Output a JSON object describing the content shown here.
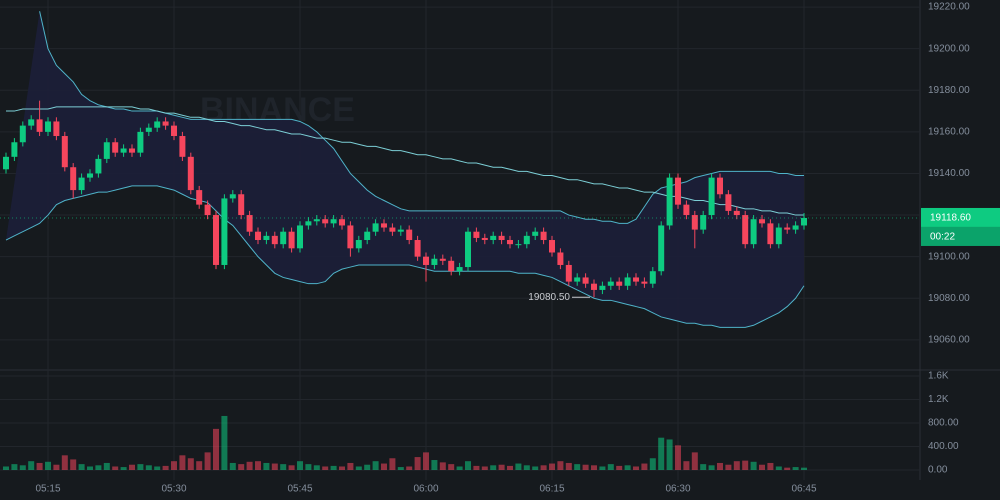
{
  "chart_data": [
    {
      "type": "candlestick",
      "watermark": "BINANCE",
      "categories": [
        null,
        null,
        null,
        null,
        null,
        "05:15",
        null,
        null,
        null,
        null,
        null,
        null,
        null,
        null,
        null,
        null,
        null,
        null,
        null,
        null,
        "05:30",
        null,
        null,
        null,
        null,
        null,
        null,
        null,
        null,
        null,
        null,
        null,
        null,
        null,
        null,
        "05:45",
        null,
        null,
        null,
        null,
        null,
        null,
        null,
        null,
        null,
        null,
        null,
        null,
        null,
        null,
        "06:00",
        null,
        null,
        null,
        null,
        null,
        null,
        null,
        null,
        null,
        null,
        null,
        null,
        null,
        null,
        "06:15",
        null,
        null,
        null,
        null,
        null,
        null,
        null,
        null,
        null,
        null,
        null,
        null,
        null,
        null,
        "06:30",
        null,
        null,
        null,
        null,
        null,
        null,
        null,
        null,
        null,
        null,
        null,
        null,
        null,
        null,
        "06:45"
      ],
      "open": [
        19142,
        19148,
        19155,
        19163,
        19166,
        19160,
        19165,
        19158,
        19143,
        19132,
        19138,
        19140,
        19147,
        19155,
        19150,
        19152,
        19150,
        19160,
        19162,
        19165,
        19163,
        19158,
        19148,
        19132,
        19125,
        19120,
        19096,
        19128,
        19130,
        19120,
        19112,
        19108,
        19110,
        19106,
        19112,
        19104,
        19115,
        19117,
        19118,
        19116,
        19118,
        19115,
        19104,
        19108,
        19112,
        19116,
        19114,
        19112,
        19113,
        19108,
        19100,
        19096,
        19099,
        19098,
        19093,
        19095,
        19112,
        19109,
        19108,
        19110,
        19108,
        19106,
        19106,
        19110,
        19112,
        19108,
        19102,
        19096,
        19088,
        19090,
        19087,
        19084,
        19086,
        19088,
        19086,
        19090,
        19088,
        19087,
        19093,
        19115,
        19138,
        19125,
        19120,
        19113,
        19120,
        19138,
        19130,
        19122,
        19120,
        19106,
        19118,
        19116,
        19106,
        19114,
        19113,
        19115
      ],
      "high": [
        19150,
        19157,
        19165,
        19168,
        19175,
        19167,
        19167,
        19160,
        19145,
        19140,
        19142,
        19149,
        19157,
        19157,
        19154,
        19154,
        19162,
        19164,
        19167,
        19167,
        19165,
        19160,
        19150,
        19134,
        19127,
        19122,
        19130,
        19132,
        19132,
        19122,
        19114,
        19112,
        19112,
        19114,
        19114,
        19117,
        19119,
        19120,
        19120,
        19120,
        19120,
        19117,
        19110,
        19114,
        19118,
        19118,
        19116,
        19115,
        19115,
        19110,
        19102,
        19101,
        19101,
        19100,
        19097,
        19114,
        19114,
        19111,
        19112,
        19112,
        19110,
        19108,
        19112,
        19114,
        19114,
        19110,
        19104,
        19098,
        19092,
        19092,
        19089,
        19088,
        19090,
        19090,
        19092,
        19092,
        19090,
        19095,
        19117,
        19140,
        19140,
        19127,
        19122,
        19122,
        19140,
        19140,
        19132,
        19124,
        19122,
        19120,
        19120,
        19118,
        19116,
        19116,
        19117,
        19121
      ],
      "low": [
        19140,
        19146,
        19153,
        19161,
        19158,
        19158,
        19156,
        19141,
        19128,
        19130,
        19136,
        19138,
        19145,
        19148,
        19148,
        19148,
        19148,
        19158,
        19160,
        19161,
        19156,
        19146,
        19130,
        19123,
        19118,
        19094,
        19094,
        19126,
        19118,
        19110,
        19106,
        19106,
        19104,
        19104,
        19102,
        19102,
        19113,
        19115,
        19114,
        19114,
        19113,
        19100,
        19102,
        19106,
        19110,
        19112,
        19110,
        19110,
        19106,
        19098,
        19088,
        19094,
        19096,
        19091,
        19091,
        19093,
        19107,
        19106,
        19106,
        19106,
        19104,
        19104,
        19104,
        19108,
        19106,
        19100,
        19094,
        19086,
        19086,
        19085,
        19080.5,
        19082,
        19084,
        19084,
        19084,
        19086,
        19085,
        19085,
        19091,
        19113,
        19123,
        19118,
        19104,
        19111,
        19118,
        19128,
        19120,
        19118,
        19104,
        19104,
        19114,
        19104,
        19104,
        19111,
        19111,
        19113
      ],
      "close": [
        19148,
        19155,
        19163,
        19166,
        19160,
        19165,
        19158,
        19143,
        19132,
        19138,
        19140,
        19147,
        19155,
        19150,
        19152,
        19150,
        19160,
        19162,
        19165,
        19163,
        19158,
        19148,
        19132,
        19125,
        19120,
        19096,
        19128,
        19130,
        19120,
        19112,
        19108,
        19110,
        19106,
        19112,
        19104,
        19115,
        19117,
        19118,
        19116,
        19118,
        19115,
        19104,
        19108,
        19112,
        19116,
        19114,
        19112,
        19113,
        19108,
        19100,
        19096,
        19099,
        19098,
        19093,
        19095,
        19112,
        19109,
        19108,
        19110,
        19108,
        19106,
        19106,
        19110,
        19112,
        19108,
        19102,
        19096,
        19088,
        19090,
        19087,
        19084,
        19086,
        19088,
        19086,
        19090,
        19088,
        19087,
        19093,
        19115,
        19138,
        19125,
        19120,
        19113,
        19120,
        19138,
        19130,
        19122,
        19120,
        19106,
        19118,
        19116,
        19106,
        19114,
        19113,
        19115,
        19118.6
      ],
      "up_color": "#0ecb81",
      "down_color": "#f6465d",
      "lines": [
        {
          "color": "#4fb3c9",
          "values": [
            null,
            null,
            null,
            null,
            19218,
            19200,
            19192,
            19188,
            19184,
            19178,
            19175,
            19173,
            19172,
            19171,
            19171,
            19170,
            19170,
            19170,
            19170,
            19169,
            19168,
            19167,
            19166,
            19166,
            19166,
            19166,
            19166,
            19166,
            19166,
            19166,
            19166,
            19166,
            19166,
            19166,
            19166,
            19165,
            19163,
            19160,
            19156,
            19152,
            19146,
            19140,
            19136,
            19132,
            19129,
            19127,
            19125,
            19123,
            19122,
            19122,
            19122,
            19122,
            19122,
            19122,
            19122,
            19122,
            19122,
            19122,
            19122,
            19122,
            19122,
            19122,
            19122,
            19122,
            19122,
            19122,
            19122,
            19120,
            19119,
            19118,
            19118,
            19117,
            19117,
            19116,
            19116,
            19118,
            19124,
            19130,
            19133,
            19134,
            19135,
            19136,
            19138,
            19139,
            19140,
            19141,
            19141,
            19141,
            19141,
            19141,
            19141,
            19141,
            19140,
            19140,
            19139,
            19139
          ]
        },
        {
          "color": "#4fb3c9",
          "values": [
            19108,
            19110,
            19112,
            19114,
            19116,
            19120,
            19125,
            19127,
            19128,
            19129,
            19130,
            19131,
            19131,
            19132,
            19133,
            19134,
            19134,
            19134,
            19134,
            19133,
            19132,
            19130,
            19128,
            19127,
            19126,
            19122,
            19118,
            19115,
            19110,
            19105,
            19100,
            19096,
            19092,
            19090,
            19089,
            19088,
            19087,
            19087,
            19088,
            19092,
            19094,
            19095,
            19096,
            19096,
            19096,
            19096,
            19096,
            19096,
            19096,
            19095,
            19094,
            19093,
            19093,
            19093,
            19093,
            19093,
            19093,
            19093,
            19093,
            19093,
            19093,
            19092,
            19092,
            19092,
            19091,
            19090,
            19088,
            19086,
            19084,
            19082,
            19080,
            19079,
            19079,
            19078,
            19077,
            19076,
            19075,
            19073,
            19071,
            19070,
            19069,
            19068,
            19068,
            19067,
            19067,
            19066,
            19066,
            19066,
            19066,
            19067,
            19069,
            19071,
            19073,
            19076,
            19080,
            19086
          ]
        },
        {
          "color": "#7ccfd6",
          "values": [
            19170,
            19170,
            19171,
            19171,
            19171,
            19171,
            19172,
            19172,
            19172,
            19172,
            19172,
            19172,
            19172,
            19172,
            19172,
            19172,
            19171,
            19171,
            19170,
            19169,
            19169,
            19168,
            19167,
            19167,
            19166,
            19165,
            19165,
            19164,
            19163,
            19163,
            19162,
            19161,
            19161,
            19160,
            19159,
            19159,
            19158,
            19157,
            19157,
            19156,
            19155,
            19155,
            19154,
            19153,
            19153,
            19152,
            19151,
            19151,
            19150,
            19149,
            19149,
            19148,
            19147,
            19147,
            19146,
            19145,
            19145,
            19144,
            19143,
            19143,
            19142,
            19141,
            19141,
            19140,
            19139,
            19139,
            19138,
            19137,
            19137,
            19136,
            19135,
            19135,
            19134,
            19133,
            19133,
            19132,
            19131,
            19131,
            19130,
            19129,
            19129,
            19128,
            19127,
            19127,
            19126,
            19125,
            19125,
            19124,
            19123,
            19123,
            19122,
            19122,
            19121,
            19121,
            19120,
            19120
          ]
        }
      ],
      "ylim": [
        19045.5,
        19223.4
      ],
      "yticks": [
        {
          "value": 19060,
          "label": "19060.00"
        },
        {
          "value": 19080,
          "label": "19080.00"
        },
        {
          "value": 19100,
          "label": "19100.00"
        },
        {
          "value": 19120,
          "label": "19120.00"
        },
        {
          "value": 19140,
          "label": "19140.00"
        },
        {
          "value": 19160,
          "label": "19160.00"
        },
        {
          "value": 19180,
          "label": "19180.00"
        },
        {
          "value": 19200,
          "label": "19200.00"
        },
        {
          "value": 19220,
          "label": "19220.00"
        }
      ],
      "last_price": {
        "value": 19118.6,
        "label": "19118.60"
      },
      "countdown": "00:22",
      "low_label": {
        "value": 19080.5,
        "label": "19080.50"
      },
      "grid": true
    },
    {
      "type": "bar",
      "values": [
        60,
        100,
        80,
        150,
        120,
        140,
        90,
        250,
        180,
        100,
        60,
        80,
        120,
        60,
        50,
        90,
        100,
        80,
        60,
        70,
        150,
        250,
        200,
        150,
        300,
        700,
        920,
        120,
        100,
        140,
        150,
        120,
        110,
        100,
        80,
        150,
        100,
        80,
        60,
        70,
        60,
        120,
        60,
        90,
        150,
        110,
        200,
        50,
        60,
        220,
        300,
        170,
        130,
        100,
        60,
        150,
        70,
        60,
        80,
        90,
        70,
        110,
        80,
        60,
        80,
        110,
        150,
        120,
        100,
        90,
        80,
        60,
        100,
        70,
        80,
        60,
        110,
        200,
        550,
        520,
        420,
        150,
        300,
        100,
        80,
        120,
        90,
        150,
        160,
        140,
        90,
        120,
        60,
        40,
        50,
        40
      ],
      "ylim": [
        -170,
        1702
      ],
      "yticks": [
        {
          "value": 0,
          "label": "0.00"
        },
        {
          "value": 400,
          "label": "400.00"
        },
        {
          "value": 800,
          "label": "800.00"
        },
        {
          "value": 1200,
          "label": "1.2K"
        },
        {
          "value": 1600,
          "label": "1.6K"
        }
      ],
      "grid": true
    }
  ]
}
